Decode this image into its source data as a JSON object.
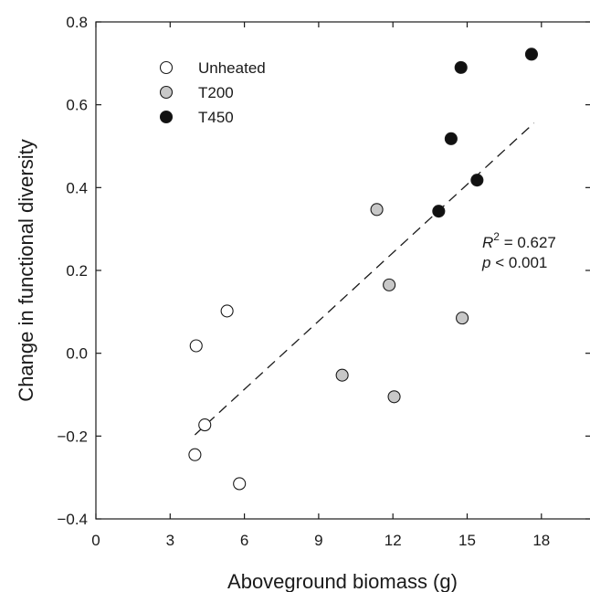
{
  "chart_data": {
    "type": "scatter",
    "xlabel": "Aboveground biomass (g)",
    "ylabel": "Change in functional diversity",
    "xlim": [
      0,
      20
    ],
    "ylim": [
      -0.4,
      0.8
    ],
    "xticks": [
      0,
      3,
      6,
      9,
      12,
      15,
      18
    ],
    "yticks": [
      -0.4,
      -0.2,
      0.0,
      0.2,
      0.4,
      0.6,
      0.8
    ],
    "xtick_labels": [
      "0",
      "3",
      "6",
      "9",
      "12",
      "15",
      "18"
    ],
    "ytick_labels": [
      "−0.4",
      "−0.2",
      "0.0",
      "0.2",
      "0.4",
      "0.6",
      "0.8"
    ],
    "legend_position": "top-left",
    "grid": false,
    "series": [
      {
        "name": "Unheated",
        "color": "#ffffff",
        "points": [
          [
            4.0,
            -0.245
          ],
          [
            4.05,
            0.018
          ],
          [
            4.4,
            -0.173
          ],
          [
            5.3,
            0.102
          ],
          [
            5.8,
            -0.315
          ]
        ]
      },
      {
        "name": "T200",
        "color": "#c8c8c8",
        "points": [
          [
            9.95,
            -0.053
          ],
          [
            11.35,
            0.347
          ],
          [
            11.85,
            0.165
          ],
          [
            12.05,
            -0.105
          ],
          [
            14.8,
            0.085
          ]
        ]
      },
      {
        "name": "T450",
        "color": "#111111",
        "points": [
          [
            13.85,
            0.343
          ],
          [
            14.35,
            0.518
          ],
          [
            14.75,
            0.69
          ],
          [
            15.4,
            0.418
          ],
          [
            17.6,
            0.722
          ]
        ]
      }
    ],
    "regression": {
      "style": "dashed",
      "x_range": [
        4.0,
        17.7
      ],
      "y_range": [
        -0.197,
        0.556
      ]
    },
    "annotation": {
      "r2_symbol": "R",
      "r2_sup": "2",
      "r2_value": " = 0.627",
      "p_symbol": "p",
      "p_value": " < 0.001"
    }
  }
}
